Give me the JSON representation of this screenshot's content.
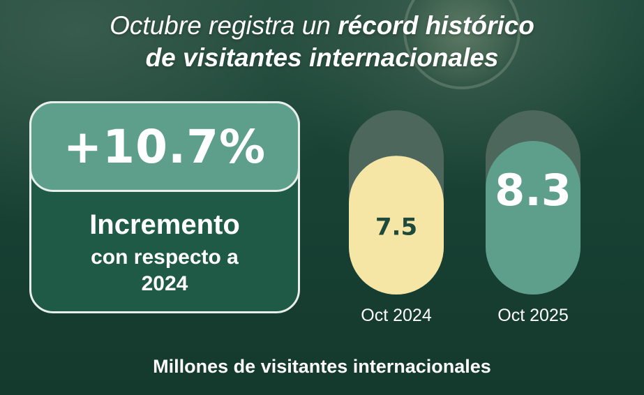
{
  "header": {
    "title_part1": "Octubre registra un ",
    "title_bold1": "récord histórico",
    "title_line2": "de visitantes internacionales"
  },
  "stat": {
    "value": "+10.7%",
    "label": "Incremento",
    "sub": "con respecto a 2024"
  },
  "footer": {
    "caption": "Millones de visitantes internacionales"
  },
  "colors": {
    "bar_2024": "#f5e6a6",
    "bar_2025": "#5e9f8c",
    "track": "#4d675d",
    "value_2024_text": "#1d4a3b",
    "value_2025_text": "#ffffff"
  },
  "chart_data": {
    "type": "bar",
    "categories": [
      "Oct 2024",
      "Oct 2025"
    ],
    "values": [
      7.5,
      8.3
    ],
    "value_labels": [
      "7.5",
      "8.3"
    ],
    "title": "",
    "xlabel": "",
    "ylabel": "Millones de visitantes internacionales"
  }
}
